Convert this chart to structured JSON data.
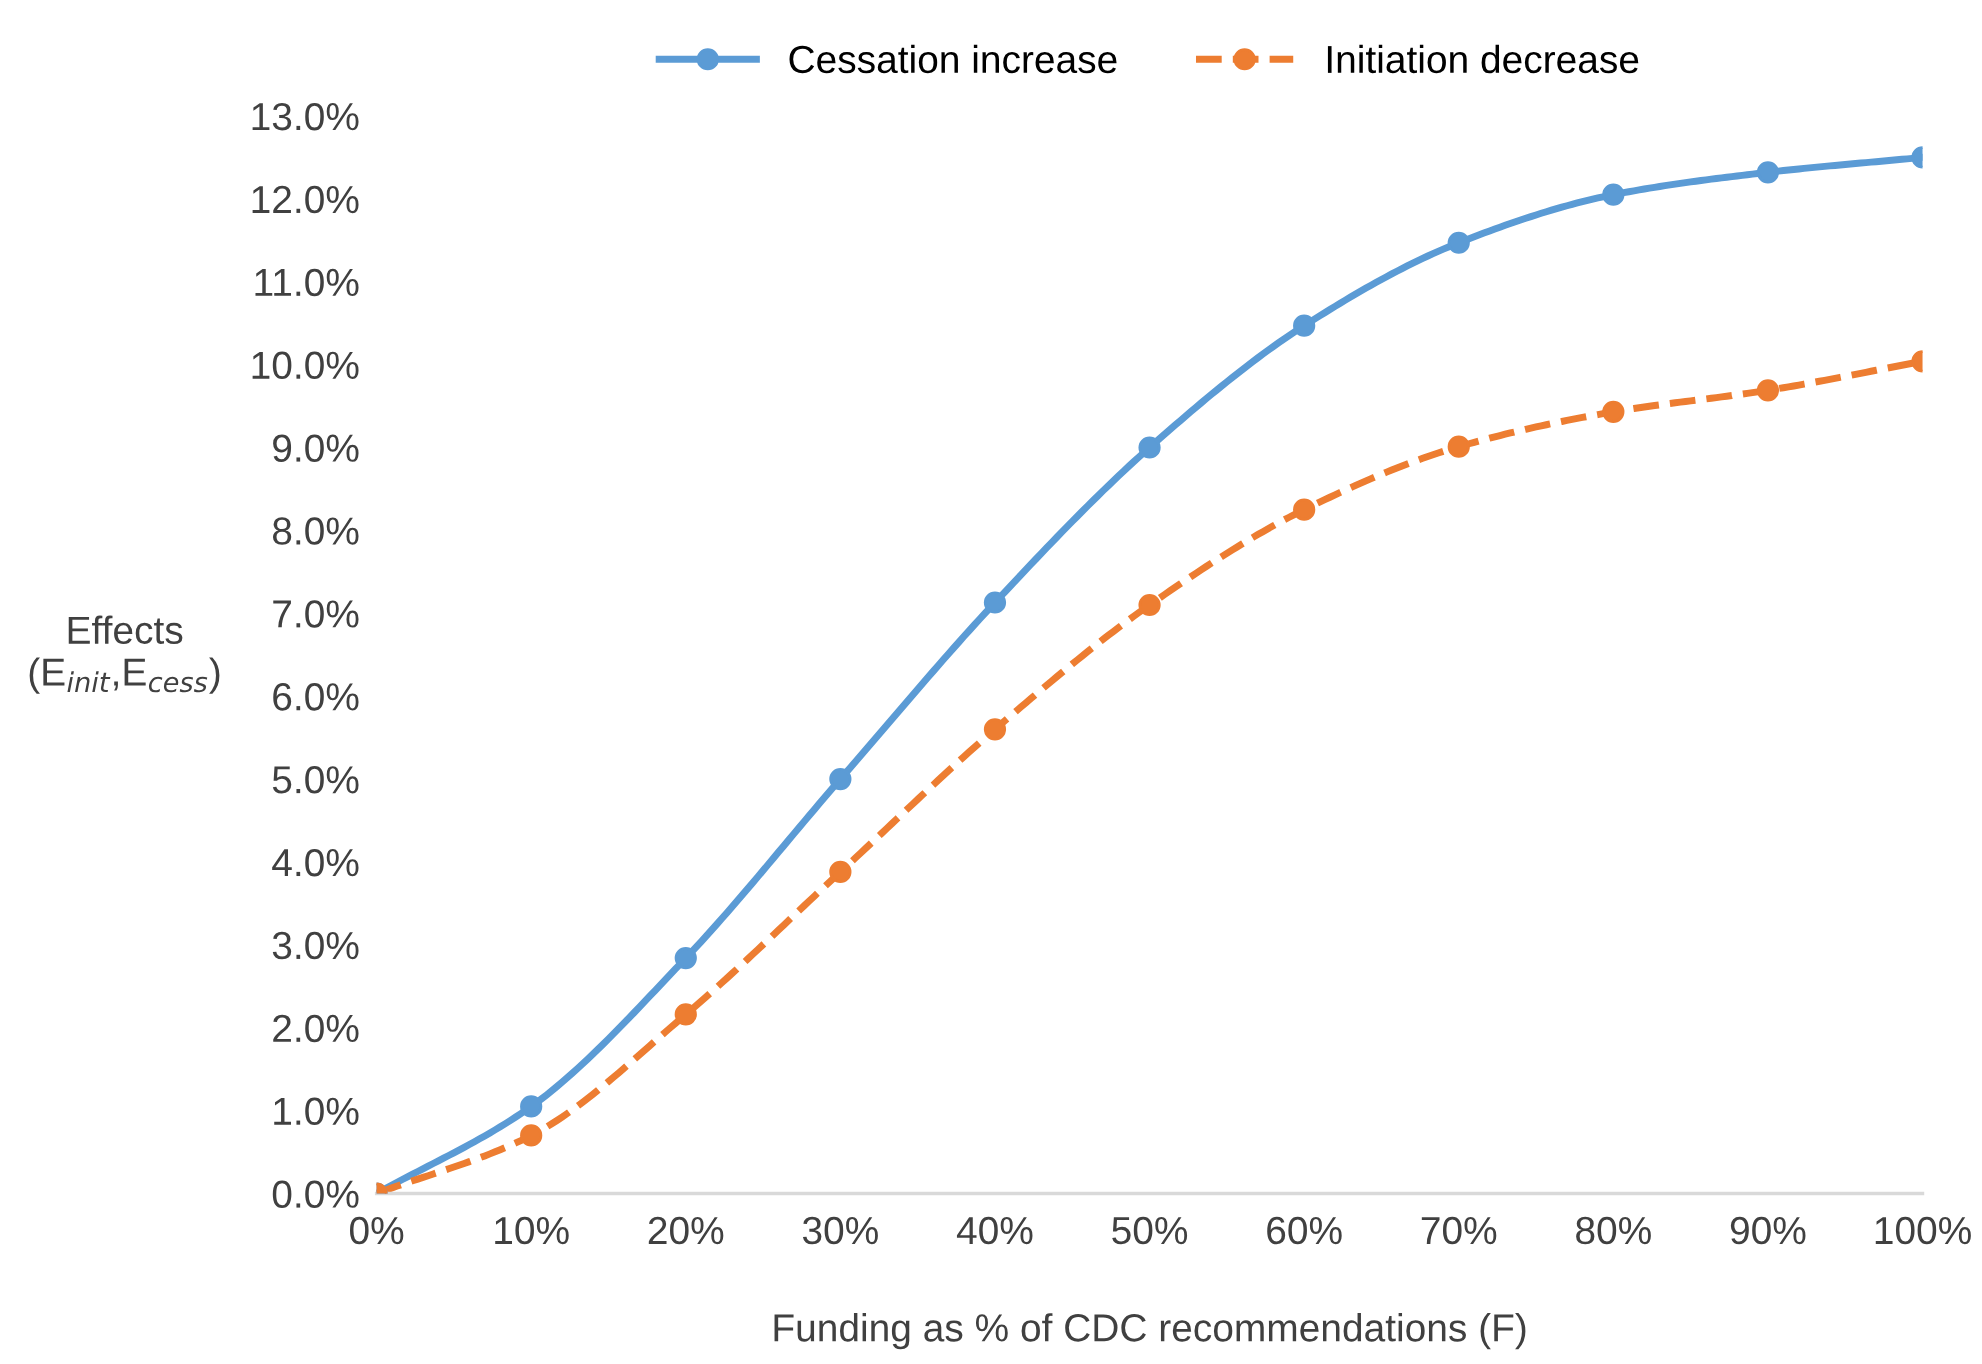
{
  "chart_data": {
    "type": "line",
    "xlabel": "Funding as % of CDC recommendations (F)",
    "ylabel": "Effects\n(E$_{init}$,E$_{cess}$)",
    "x": [
      0,
      10,
      20,
      30,
      40,
      50,
      60,
      70,
      80,
      90,
      100
    ],
    "series": [
      {
        "name": "Cessation increase",
        "color": "#5b9bd5",
        "line_style": "solid",
        "values": [
          0,
          1.05,
          2.84,
          5.0,
          7.13,
          9.0,
          10.47,
          11.47,
          12.05,
          12.32,
          12.5
        ]
      },
      {
        "name": "Initiation decrease",
        "color": "#ed7d31",
        "line_style": "dashed",
        "values": [
          0,
          0.7,
          2.16,
          3.88,
          5.6,
          7.1,
          8.25,
          9.01,
          9.43,
          9.69,
          10.04
        ]
      }
    ],
    "marker": "circle",
    "xlim": [
      0,
      100
    ],
    "xticks": [
      {
        "value": 0,
        "label": "0%"
      },
      {
        "value": 10,
        "label": "10%"
      },
      {
        "value": 20,
        "label": "20%"
      },
      {
        "value": 30,
        "label": "30%"
      },
      {
        "value": 40,
        "label": "40%"
      },
      {
        "value": 50,
        "label": "50%"
      },
      {
        "value": 60,
        "label": "60%"
      },
      {
        "value": 70,
        "label": "70%"
      },
      {
        "value": 80,
        "label": "80%"
      },
      {
        "value": 90,
        "label": "90%"
      },
      {
        "value": 100,
        "label": "100%"
      }
    ],
    "ylim": [
      0,
      13
    ],
    "yticks": [
      {
        "value": 0,
        "label": "0.0%"
      },
      {
        "value": 1,
        "label": "1.0%"
      },
      {
        "value": 2,
        "label": "2.0%"
      },
      {
        "value": 3,
        "label": "3.0%"
      },
      {
        "value": 4,
        "label": "4.0%"
      },
      {
        "value": 5,
        "label": "5.0%"
      },
      {
        "value": 6,
        "label": "6.0%"
      },
      {
        "value": 7,
        "label": "7.0%"
      },
      {
        "value": 8,
        "label": "8.0%"
      },
      {
        "value": 9,
        "label": "9.0%"
      },
      {
        "value": 10,
        "label": "10.0%"
      },
      {
        "value": 11,
        "label": "11.0%"
      },
      {
        "value": 12,
        "label": "12.0%"
      },
      {
        "value": 13,
        "label": "13.0%"
      }
    ],
    "grid": false,
    "legend": "top"
  }
}
